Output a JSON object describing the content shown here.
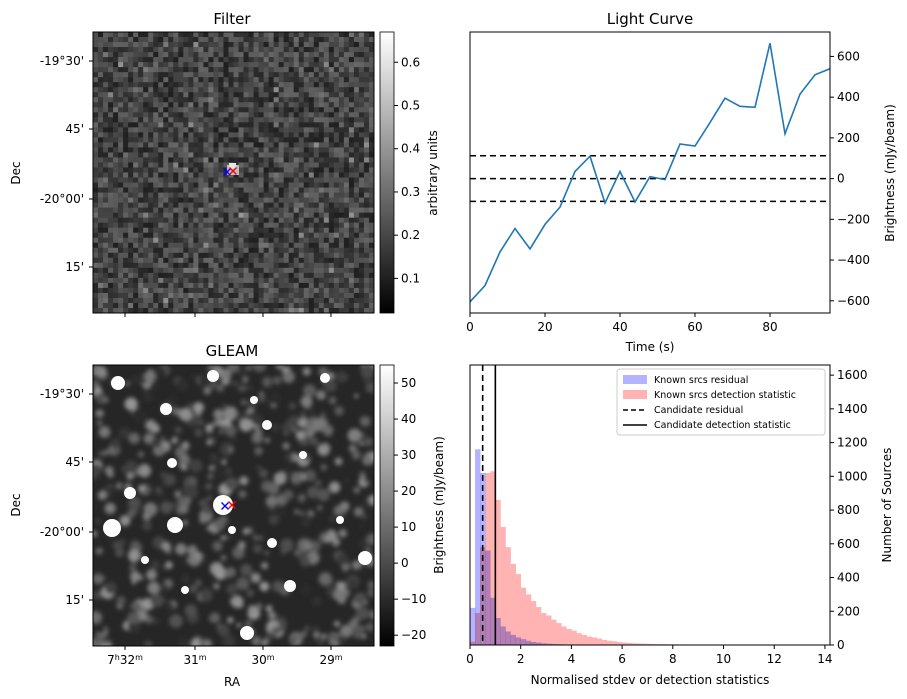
{
  "chart_data": [
    {
      "type": "heatmap",
      "title": "Filter",
      "ylabel": "Dec",
      "xlabel": "",
      "yticklabels": [
        "-19°30'",
        "45'",
        "-20°00'",
        "15'"
      ],
      "colorbar": {
        "label": "arbitrary units",
        "range": [
          0.02,
          0.67
        ],
        "ticks": [
          "0.1",
          "0.2",
          "0.3",
          "0.4",
          "0.5",
          "0.6"
        ],
        "tick_values": [
          0.1,
          0.2,
          0.3,
          0.4,
          0.5,
          0.6
        ]
      },
      "markers": [
        {
          "symbol": "x",
          "color": "#0000ff"
        },
        {
          "symbol": "x",
          "color": "#ff0000"
        }
      ]
    },
    {
      "type": "line",
      "title": "Light Curve",
      "xlabel": "Time (s)",
      "ylabel": "Brightness (mJy/beam)",
      "xlim": [
        0,
        96
      ],
      "ylim": [
        -660,
        720
      ],
      "xticks": [
        "0",
        "20",
        "40",
        "60",
        "80"
      ],
      "xtick_values": [
        0,
        20,
        40,
        60,
        80
      ],
      "yticks": [
        "−600",
        "−400",
        "−200",
        "0",
        "200",
        "400",
        "600"
      ],
      "ytick_values": [
        -600,
        -400,
        -200,
        0,
        200,
        400,
        600
      ],
      "hlines": [
        112,
        0,
        -112
      ],
      "series": [
        {
          "color": "#1f77b4",
          "x": [
            0,
            4,
            8,
            12,
            16,
            20,
            24,
            28,
            32,
            36,
            40,
            44,
            48,
            52,
            56,
            60,
            64,
            68,
            72,
            76,
            80,
            84,
            88,
            92,
            96
          ],
          "y": [
            -605,
            -525,
            -360,
            -245,
            -345,
            -225,
            -140,
            35,
            110,
            -120,
            35,
            -115,
            10,
            -5,
            170,
            160,
            275,
            395,
            355,
            350,
            665,
            220,
            415,
            510,
            540
          ]
        }
      ]
    },
    {
      "type": "heatmap",
      "title": "GLEAM",
      "ylabel": "Dec",
      "xlabel": "RA",
      "yticklabels": [
        "-19°30'",
        "45'",
        "-20°00'",
        "15'"
      ],
      "xticklabels": [
        {
          "h": "7",
          "hs": "h",
          "m": "32",
          "ms": "m"
        },
        {
          "m": "31",
          "ms": "m"
        },
        {
          "m": "30",
          "ms": "m"
        },
        {
          "m": "29",
          "ms": "m"
        }
      ],
      "colorbar": {
        "label": "Brightness (mJy/beam)",
        "range": [
          -23,
          55
        ],
        "ticks": [
          "−20",
          "−10",
          "0",
          "10",
          "20",
          "30",
          "40",
          "50"
        ],
        "tick_values": [
          -20,
          -10,
          0,
          10,
          20,
          30,
          40,
          50
        ]
      },
      "markers": [
        {
          "symbol": "x",
          "color": "#0000ff"
        },
        {
          "symbol": "x",
          "color": "#ff0000"
        }
      ]
    },
    {
      "type": "bar",
      "subtype": "histogram",
      "xlabel": "Normalised stdev or detection statistics",
      "ylabel": "Number of Sources",
      "xlim": [
        0,
        14.2
      ],
      "ylim": [
        0,
        1660
      ],
      "xticks": [
        "0",
        "2",
        "4",
        "6",
        "8",
        "10",
        "12",
        "14"
      ],
      "xtick_values": [
        0,
        2,
        4,
        6,
        8,
        10,
        12,
        14
      ],
      "yticks": [
        "0",
        "200",
        "400",
        "600",
        "800",
        "1000",
        "1200",
        "1400",
        "1600"
      ],
      "ytick_values": [
        0,
        200,
        400,
        600,
        800,
        1000,
        1200,
        1400,
        1600
      ],
      "bin_width": 0.2,
      "series": [
        {
          "name": "Known srcs residual",
          "color": "#b3b3ff",
          "bins_start": 0.0,
          "values": [
            220,
            1160,
            1020,
            560,
            280,
            160,
            110,
            80,
            60,
            45,
            35,
            25,
            18,
            14,
            10,
            8,
            6,
            5,
            4,
            3,
            3,
            2,
            2,
            2,
            1,
            1,
            1,
            1
          ]
        },
        {
          "name": "Known srcs detection statistic",
          "color": "#ffb3b3",
          "bins_start": 0.0,
          "values": [
            20,
            190,
            580,
            1020,
            1030,
            860,
            700,
            580,
            480,
            420,
            340,
            300,
            260,
            225,
            190,
            175,
            150,
            130,
            110,
            95,
            85,
            70,
            60,
            50,
            45,
            38,
            30,
            25,
            22,
            18,
            15,
            12,
            10,
            9,
            8,
            7,
            6,
            5,
            5,
            4,
            4,
            3,
            3,
            3,
            2,
            2,
            2,
            2,
            2,
            2,
            1,
            1,
            1,
            1,
            1,
            1,
            1,
            1,
            1,
            1,
            1,
            1,
            1,
            1,
            1,
            1,
            1,
            1,
            1,
            1,
            1
          ]
        }
      ],
      "vlines": [
        {
          "name": "Candidate residual",
          "x": 0.5,
          "style": "dashed"
        },
        {
          "name": "Candidate detection statistic",
          "x": 1.0,
          "style": "solid"
        }
      ],
      "legend": "top-right"
    }
  ]
}
